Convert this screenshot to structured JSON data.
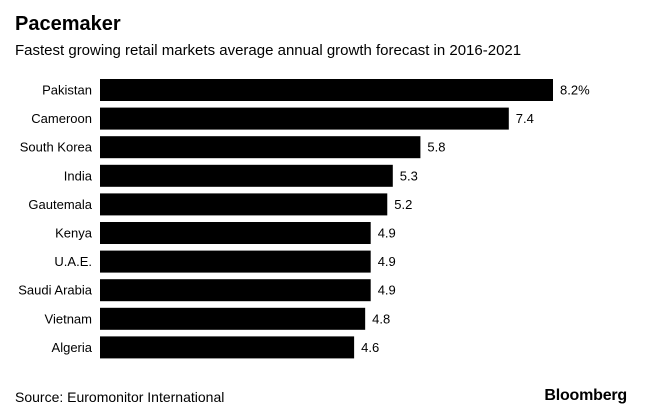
{
  "header": {
    "title": "Pacemaker",
    "subtitle": "Fastest growing retail markets average annual growth forecast in 2016-2021"
  },
  "footer": {
    "source": "Source: Euromonitor International",
    "brand": "Bloomberg"
  },
  "colors": {
    "bar": "#000000",
    "background": "#ffffff",
    "text": "#000000"
  },
  "chart_data": {
    "type": "bar",
    "orientation": "horizontal",
    "title": "Pacemaker",
    "subtitle": "Fastest growing retail markets average annual growth forecast in 2016-2021",
    "categories": [
      "Pakistan",
      "Cameroon",
      "South Korea",
      "India",
      "Gautemala",
      "Kenya",
      "U.A.E.",
      "Saudi Arabia",
      "Vietnam",
      "Algeria"
    ],
    "values": [
      8.2,
      7.4,
      5.8,
      5.3,
      5.2,
      4.9,
      4.9,
      4.9,
      4.8,
      4.6
    ],
    "value_labels": [
      "8.2%",
      "7.4",
      "5.8",
      "5.3",
      "5.2",
      "4.9",
      "4.9",
      "4.9",
      "4.8",
      "4.6"
    ],
    "xlim": [
      0,
      8.2
    ],
    "grid": false,
    "legend": "none"
  }
}
